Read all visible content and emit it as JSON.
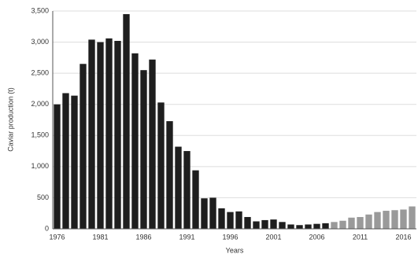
{
  "chart_data": {
    "type": "bar",
    "categories": [
      "1976",
      null,
      null,
      null,
      null,
      "1981",
      null,
      null,
      null,
      null,
      "1986",
      null,
      null,
      null,
      null,
      "1991",
      null,
      null,
      null,
      null,
      "1996",
      null,
      null,
      null,
      null,
      "2001",
      null,
      null,
      null,
      null,
      "2006",
      null,
      null,
      null,
      null,
      "2011",
      null,
      null,
      null,
      null,
      "2016",
      null
    ],
    "values": [
      2000,
      2180,
      2140,
      2650,
      3040,
      3000,
      3060,
      3020,
      3450,
      2820,
      2550,
      2720,
      2030,
      1730,
      1320,
      1250,
      940,
      490,
      500,
      330,
      270,
      280,
      190,
      120,
      140,
      150,
      110,
      70,
      60,
      70,
      80,
      90,
      110,
      130,
      180,
      190,
      230,
      270,
      290,
      300,
      310,
      360
    ],
    "colors": [
      "#1e1e1e",
      "#1e1e1e",
      "#1e1e1e",
      "#1e1e1e",
      "#1e1e1e",
      "#1e1e1e",
      "#1e1e1e",
      "#1e1e1e",
      "#1e1e1e",
      "#1e1e1e",
      "#1e1e1e",
      "#1e1e1e",
      "#1e1e1e",
      "#1e1e1e",
      "#1e1e1e",
      "#1e1e1e",
      "#1e1e1e",
      "#1e1e1e",
      "#1e1e1e",
      "#1e1e1e",
      "#1e1e1e",
      "#1e1e1e",
      "#1e1e1e",
      "#1e1e1e",
      "#1e1e1e",
      "#1e1e1e",
      "#1e1e1e",
      "#1e1e1e",
      "#1e1e1e",
      "#1e1e1e",
      "#1e1e1e",
      "#1e1e1e",
      "#9a9a9a",
      "#9a9a9a",
      "#9a9a9a",
      "#9a9a9a",
      "#9a9a9a",
      "#9a9a9a",
      "#9a9a9a",
      "#9a9a9a",
      "#9a9a9a",
      "#9a9a9a"
    ],
    "x_label": "Years",
    "y_label": "Caviar production (t)",
    "ylim": [
      0,
      3500
    ],
    "yticks": [
      0,
      500,
      {
        "value": 1000,
        "label": "1,000"
      },
      {
        "value": 1500,
        "label": "1,500"
      },
      {
        "value": 2000,
        "label": "2,000"
      },
      {
        "value": 2500,
        "label": "2,500"
      },
      {
        "value": 3000,
        "label": "3,000"
      },
      {
        "value": 3500,
        "label": "3,500"
      }
    ],
    "grid": true
  }
}
